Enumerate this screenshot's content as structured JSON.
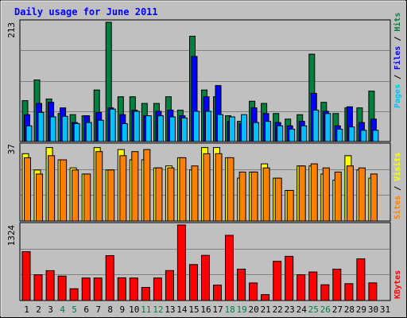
{
  "chart_data": {
    "type": "bar",
    "title": "Daily usage for June 2011",
    "days": [
      "1",
      "2",
      "3",
      "4",
      "5",
      "6",
      "7",
      "8",
      "9",
      "10",
      "11",
      "12",
      "13",
      "14",
      "15",
      "16",
      "17",
      "18",
      "19",
      "20",
      "21",
      "22",
      "23",
      "24",
      "25",
      "26",
      "27",
      "28",
      "29",
      "30",
      "31"
    ],
    "weekend_days": [
      "4",
      "5",
      "11",
      "12",
      "18",
      "19",
      "25",
      "26"
    ],
    "panels": {
      "hits_files_pages": {
        "ylabel_max": "213",
        "ymax": 213,
        "series": [
          {
            "name": "Hits",
            "color": "#008040",
            "values": [
              73,
              110,
              76,
              50,
              48,
              46,
              92,
              213,
              80,
              80,
              68,
              68,
              80,
              56,
              188,
              92,
              80,
              46,
              36,
              72,
              68,
              50,
              40,
              48,
              156,
              70,
              50,
              60,
              60,
              90,
              0
            ]
          },
          {
            "name": "Files",
            "color": "#0000ff",
            "values": [
              48,
              68,
              70,
              60,
              34,
              46,
              52,
              60,
              48,
              56,
              46,
              54,
              56,
              46,
              152,
              80,
              100,
              36,
              32,
              60,
              50,
              34,
              28,
              36,
              86,
              54,
              28,
              62,
              34,
              40,
              0
            ]
          },
          {
            "name": "Pages",
            "color": "#00c0ff",
            "values": [
              28,
              52,
              44,
              45,
              32,
              34,
              38,
              58,
              32,
              54,
              46,
              46,
              44,
              42,
              54,
              54,
              48,
              44,
              48,
              34,
              36,
              28,
              22,
              28,
              56,
              50,
              22,
              26,
              20,
              20,
              0
            ]
          }
        ]
      },
      "visits_sites": {
        "ylabel_max": "37",
        "ymax": 37,
        "series": [
          {
            "name": "Visits",
            "color": "#ffff00",
            "values": [
              33,
              25,
              36,
              30,
              26,
              23,
              36,
              25,
              35,
              30,
              30,
              26,
              27,
              31,
              25,
              36,
              36,
              31,
              21,
              24,
              28,
              21,
              15,
              27,
              27,
              23,
              20,
              32,
              25,
              21,
              0
            ]
          },
          {
            "name": "Sites",
            "color": "#ff8000",
            "values": [
              31,
              23,
              32,
              30,
              25,
              23,
              34,
              25,
              32,
              34,
              35,
              26,
              26,
              31,
              27,
              33,
              33,
              31,
              24,
              24,
              26,
              21,
              15,
              27,
              28,
              26,
              24,
              27,
              26,
              23,
              0
            ]
          }
        ]
      },
      "kbytes": {
        "ylabel_max": "1324",
        "ymax": 1324,
        "series": [
          {
            "name": "KBytes",
            "color": "#ff0000",
            "values": [
              856,
              451,
              524,
              428,
              206,
              395,
              395,
              788,
              399,
              395,
              230,
              395,
              525,
              1324,
              630,
              791,
              270,
              1143,
              551,
              308,
              103,
              687,
              775,
              451,
              500,
              276,
              550,
              295,
              730,
              309,
              0
            ]
          }
        ]
      }
    }
  }
}
